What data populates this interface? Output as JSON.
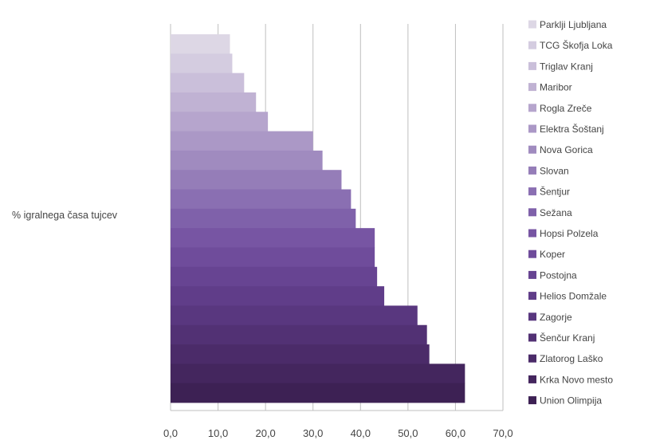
{
  "chart_data": {
    "type": "bar",
    "orientation": "horizontal",
    "stacked_bands": true,
    "category_label": "% igralnega časa tujcev",
    "xlim": [
      0,
      70
    ],
    "x_ticks": [
      "0,0",
      "10,0",
      "20,0",
      "30,0",
      "40,0",
      "50,0",
      "60,0",
      "70,0"
    ],
    "grid": "vertical",
    "legend_position": "right",
    "series": [
      {
        "name": "Parklji Ljubljana",
        "value": 12.5,
        "color": "#ddd7e5"
      },
      {
        "name": "TCG Škofja Loka",
        "value": 13.0,
        "color": "#d4cce0"
      },
      {
        "name": "Triglav Kranj",
        "value": 15.5,
        "color": "#cabfda"
      },
      {
        "name": "Maribor",
        "value": 18.0,
        "color": "#c0b2d3"
      },
      {
        "name": "Rogla Zreče",
        "value": 20.5,
        "color": "#b6a5cd"
      },
      {
        "name": "Elektra Šoštanj",
        "value": 30.0,
        "color": "#ab98c6"
      },
      {
        "name": "Nova Gorica",
        "value": 32.0,
        "color": "#a08bbf"
      },
      {
        "name": "Slovan",
        "value": 36.0,
        "color": "#957db8"
      },
      {
        "name": "Šentjur",
        "value": 38.0,
        "color": "#8a6fb2"
      },
      {
        "name": "Sežana",
        "value": 39.0,
        "color": "#7f61aa"
      },
      {
        "name": "Hopsi Polzela",
        "value": 43.0,
        "color": "#7755a3"
      },
      {
        "name": "Koper",
        "value": 43.0,
        "color": "#6f4c9b"
      },
      {
        "name": "Postojna",
        "value": 43.5,
        "color": "#674492"
      },
      {
        "name": "Helios Domžale",
        "value": 45.0,
        "color": "#603d89"
      },
      {
        "name": "Zagorje",
        "value": 52.0,
        "color": "#59377f"
      },
      {
        "name": "Šenčur Kranj",
        "value": 54.0,
        "color": "#523174"
      },
      {
        "name": "Zlatorog Laško",
        "value": 54.5,
        "color": "#4b2b69"
      },
      {
        "name": "Krka Novo mesto",
        "value": 62.0,
        "color": "#44265e"
      },
      {
        "name": "Union Olimpija",
        "value": 62.0,
        "color": "#3d2154"
      }
    ]
  }
}
